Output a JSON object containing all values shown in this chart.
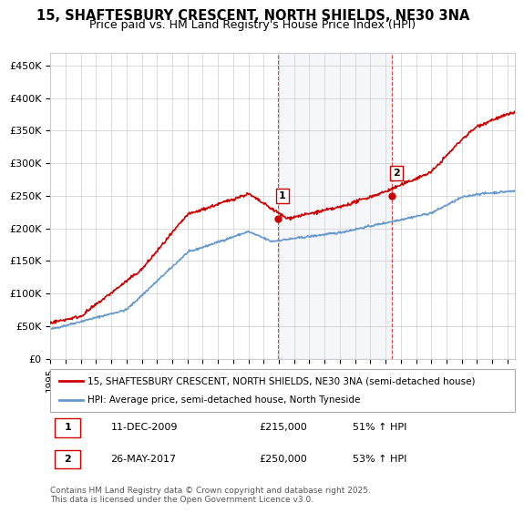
{
  "title_line1": "15, SHAFTESBURY CRESCENT, NORTH SHIELDS, NE30 3NA",
  "title_line2": "Price paid vs. HM Land Registry's House Price Index (HPI)",
  "ylabel_ticks": [
    "£0",
    "£50K",
    "£100K",
    "£150K",
    "£200K",
    "£250K",
    "£300K",
    "£350K",
    "£400K",
    "£450K"
  ],
  "ytick_vals": [
    0,
    50000,
    100000,
    150000,
    200000,
    250000,
    300000,
    350000,
    400000,
    450000
  ],
  "ylim": [
    0,
    470000
  ],
  "xlim_start": 1995.0,
  "xlim_end": 2025.5,
  "xticks": [
    1995,
    1996,
    1997,
    1998,
    1999,
    2000,
    2001,
    2002,
    2003,
    2004,
    2005,
    2006,
    2007,
    2008,
    2009,
    2010,
    2011,
    2012,
    2013,
    2014,
    2015,
    2016,
    2017,
    2018,
    2019,
    2020,
    2021,
    2022,
    2023,
    2024,
    2025
  ],
  "property_color": "#cc0000",
  "hpi_color": "#6699cc",
  "property_label": "15, SHAFTESBURY CRESCENT, NORTH SHIELDS, NE30 3NA (semi-detached house)",
  "hpi_label": "HPI: Average price, semi-detached house, North Tyneside",
  "marker1_x": 2009.94,
  "marker1_y": 215000,
  "marker1_label": "1",
  "marker1_date": "11-DEC-2009",
  "marker1_price": "£215,000",
  "marker1_pct": "51% ↑ HPI",
  "marker2_x": 2017.4,
  "marker2_y": 250000,
  "marker2_label": "2",
  "marker2_date": "26-MAY-2017",
  "marker2_price": "£250,000",
  "marker2_pct": "53% ↑ HPI",
  "shading_x_start": 2009.94,
  "shading_x_end": 2017.4,
  "background_color": "#ffffff",
  "grid_color": "#cccccc",
  "footnote": "Contains HM Land Registry data © Crown copyright and database right 2025.\nThis data is licensed under the Open Government Licence v3.0."
}
